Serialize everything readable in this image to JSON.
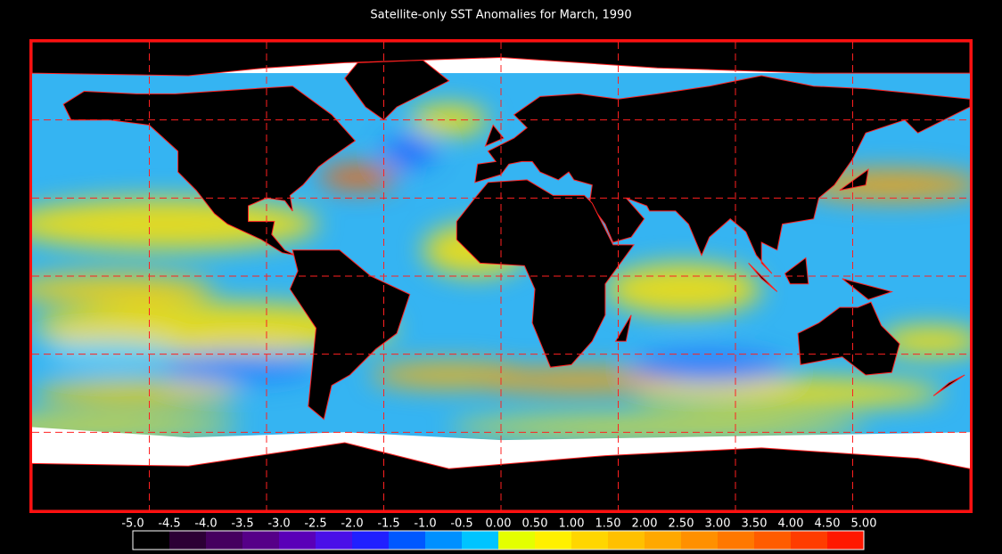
{
  "title": "Satellite-only SST Anomalies for March, 1990",
  "colorbar": {
    "ticks": [
      {
        "value": -5,
        "label": "-5.0"
      },
      {
        "value": -4.5,
        "label": "-4.5"
      },
      {
        "value": -4,
        "label": "-4.0"
      },
      {
        "value": -3.5,
        "label": "-3.5"
      },
      {
        "value": -3,
        "label": "-3.0"
      },
      {
        "value": -2.5,
        "label": "-2.5"
      },
      {
        "value": -2,
        "label": "-2.0"
      },
      {
        "value": -1.5,
        "label": "-1.5"
      },
      {
        "value": -1,
        "label": "-1.0"
      },
      {
        "value": -0.5,
        "label": "-0.5"
      },
      {
        "value": 0,
        "label": "0.00"
      },
      {
        "value": 0.5,
        "label": "0.50"
      },
      {
        "value": 1,
        "label": "1.00"
      },
      {
        "value": 1.5,
        "label": "1.50"
      },
      {
        "value": 2,
        "label": "2.00"
      },
      {
        "value": 2.5,
        "label": "2.50"
      },
      {
        "value": 3,
        "label": "3.00"
      },
      {
        "value": 3.5,
        "label": "3.50"
      },
      {
        "value": 4,
        "label": "4.00"
      },
      {
        "value": 4.5,
        "label": "4.50"
      },
      {
        "value": 5,
        "label": "5.00"
      }
    ],
    "colors": [
      "#000000",
      "#2c0035",
      "#45005f",
      "#560088",
      "#5a00b8",
      "#4a10e8",
      "#2020ff",
      "#0058ff",
      "#0090ff",
      "#00c4ff",
      "#e4ff00",
      "#fff000",
      "#ffd600",
      "#ffc000",
      "#ffa800",
      "#ff9000",
      "#ff7800",
      "#ff5c00",
      "#ff3c00",
      "#ff1800"
    ]
  }
}
